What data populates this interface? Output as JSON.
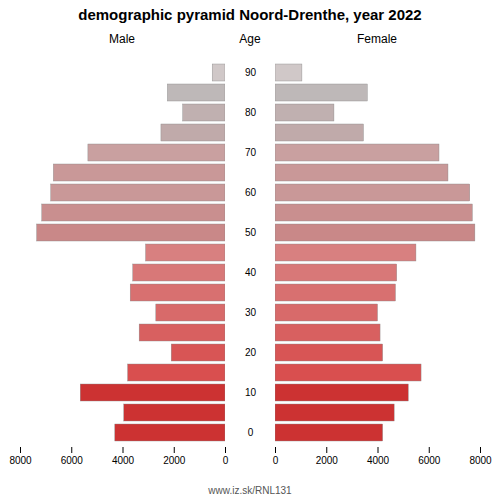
{
  "chart_data": {
    "type": "bar",
    "orientation": "horizontal",
    "title": "demographic pyramid Noord-Drenthe, year 2022",
    "ylabel": "Age",
    "caption": "www.iz.sk/RNL131",
    "categories": [
      "0",
      null,
      "10",
      null,
      "20",
      null,
      "30",
      null,
      "40",
      null,
      "50",
      null,
      "60",
      null,
      "70",
      null,
      "80",
      null,
      "90"
    ],
    "series": [
      {
        "name": "Male",
        "colors": [
          "#cc3232",
          "#cc3232",
          "#cc3232",
          "#d94f4f",
          "#d85555",
          "#d86060",
          "#d86a6a",
          "#d87070",
          "#d87878",
          "#d88080",
          "#c98888",
          "#c98f8f",
          "#c99898",
          "#c99898",
          "#c9a0a0",
          "#c0aaaa",
          "#c0b0b0",
          "#beb8b8",
          "#d0c8c8"
        ],
        "values": [
          4300,
          3950,
          5650,
          3800,
          2100,
          3350,
          2700,
          3700,
          3600,
          3100,
          7350,
          7150,
          6800,
          6700,
          5350,
          2500,
          1650,
          2250,
          500
        ]
      },
      {
        "name": "Female",
        "colors": [
          "#cc3232",
          "#cc3232",
          "#cc3232",
          "#d94f4f",
          "#d85555",
          "#d86060",
          "#d86a6a",
          "#d87070",
          "#d87878",
          "#d88080",
          "#c98888",
          "#c98f8f",
          "#c99898",
          "#c99898",
          "#c9a0a0",
          "#c0aaaa",
          "#c0b0b0",
          "#beb8b8",
          "#d0c8c8"
        ],
        "values": [
          4200,
          4650,
          5200,
          5700,
          4200,
          4100,
          4000,
          4700,
          4750,
          5500,
          7800,
          7700,
          7600,
          6750,
          6400,
          3450,
          2300,
          3600,
          1050
        ]
      }
    ],
    "xlim": [
      0,
      8000
    ],
    "xticks": [
      0,
      2000,
      4000,
      6000,
      8000
    ],
    "grid": false
  }
}
